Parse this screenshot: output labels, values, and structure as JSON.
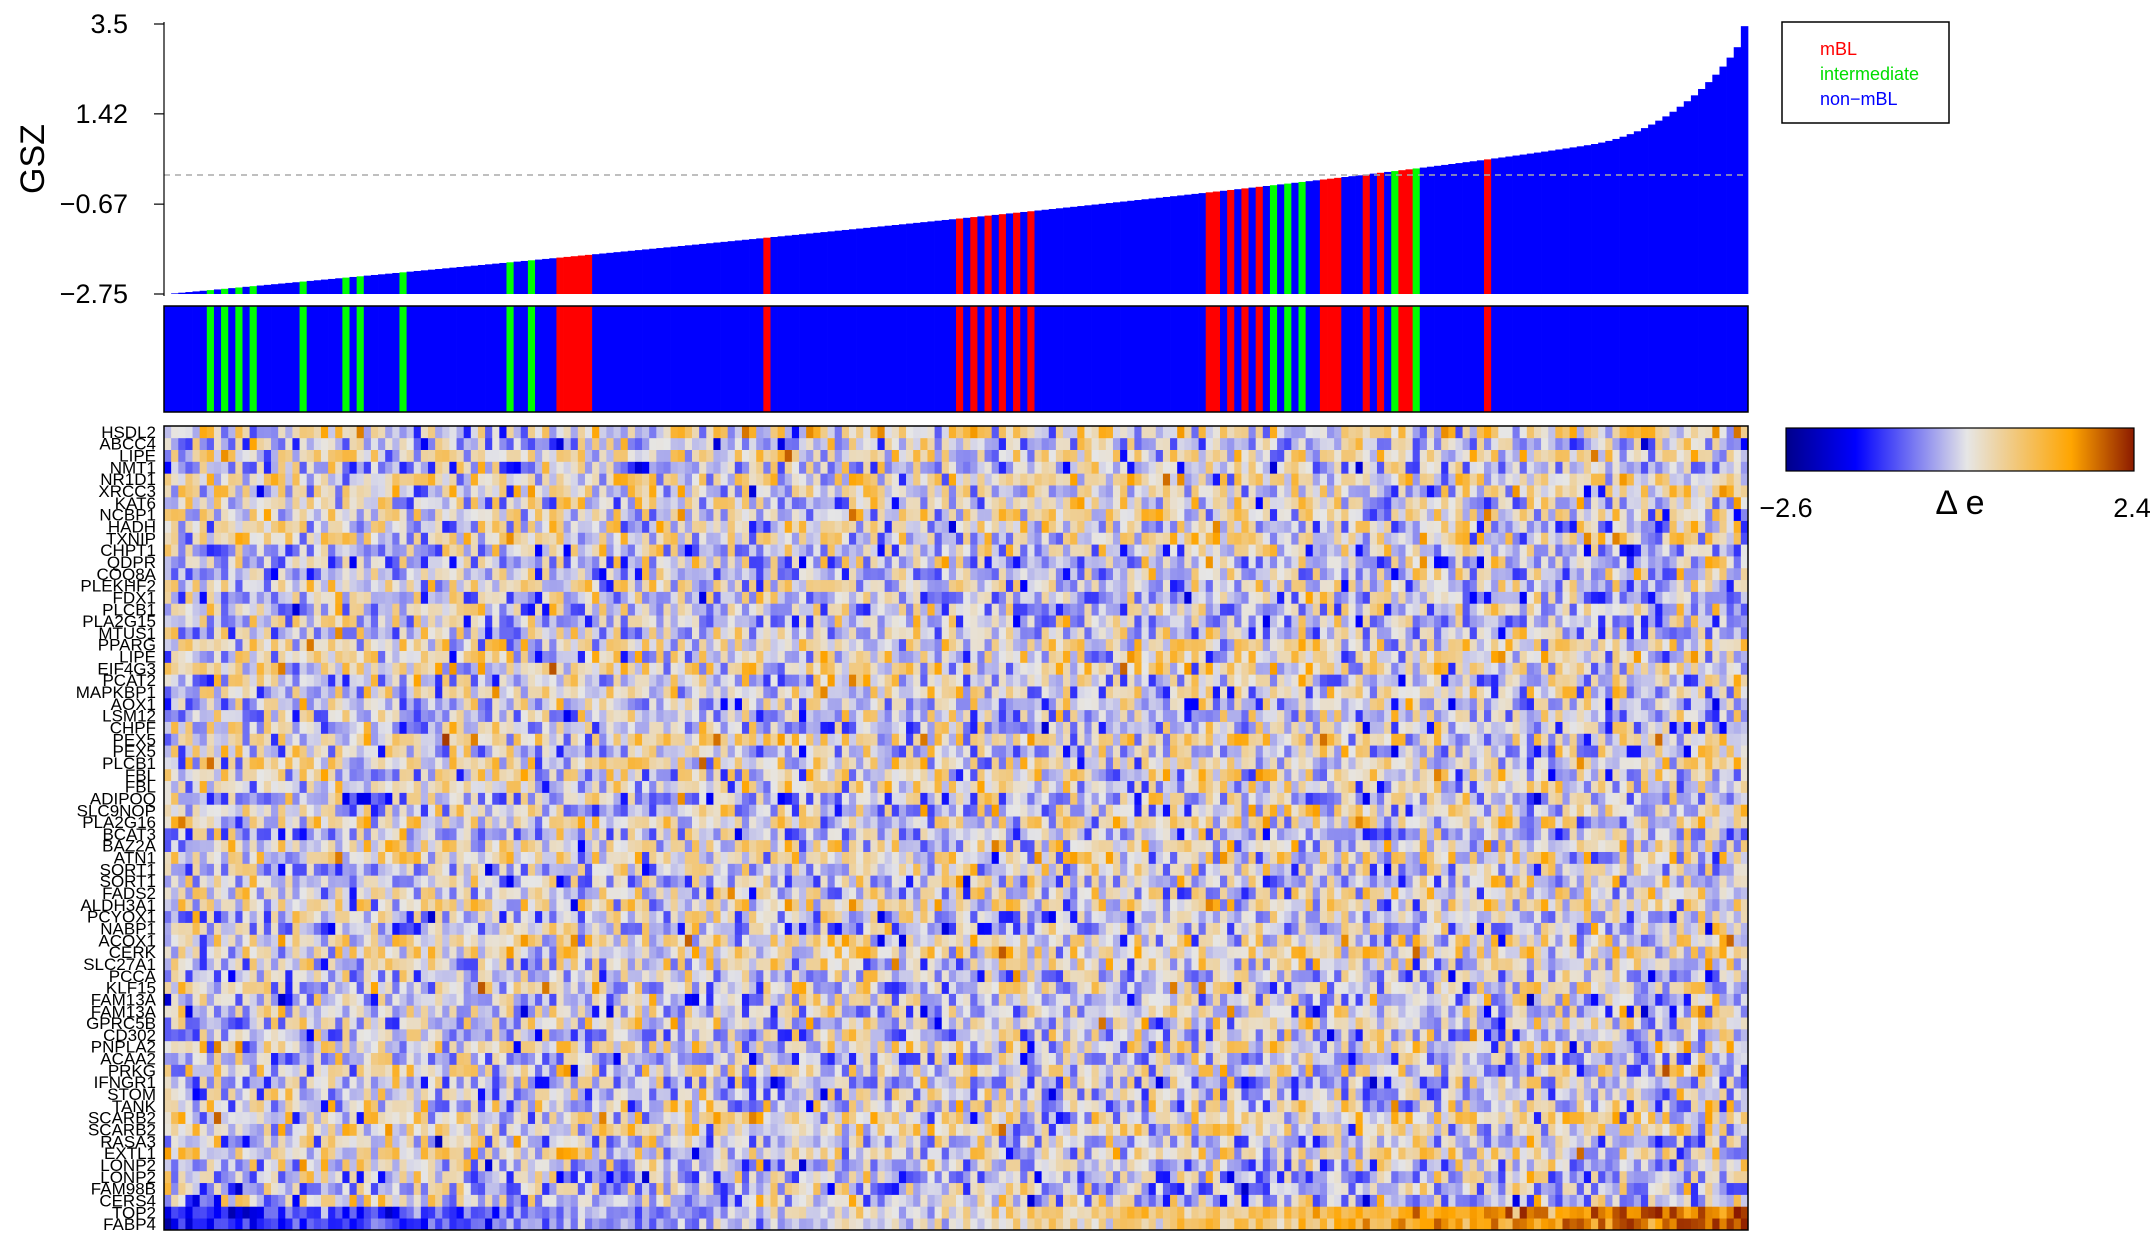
{
  "chart_data": [
    {
      "type": "bar",
      "description": "Gene set Z score (GSZ) per sample, sorted ascending, colored by class",
      "ylabel": "GSZ",
      "yticks": [
        "3.5",
        "1.42",
        "−0.67",
        "−2.75"
      ],
      "ylim": [
        -2.75,
        3.5
      ],
      "reference_line": 0.0,
      "n_samples": 220,
      "class_sequence": "nnnnnnininininnnnnninnnnnininnnnninnnnnnnnnnnnnninninnnrrrrrnnnnnnnnnnnnnnnnnnnnnnnnrnnnnnnnnnnnnnnnnnnnnnnnnnnrnrnrnrnrnrnnnnnnnnnnnnnnnnnnnnnnnnrrnrnrnrninininnrrrnnnrnrnirrinnnnnnnnnrnnnnnnnnnnnnnnnnnnnnnnnnnnnnnnnnnnnn",
      "legend": [
        {
          "label": "mBL",
          "color": "#ff0000"
        },
        {
          "label": "intermediate",
          "color": "#00ff00"
        },
        {
          "label": "non−mBL",
          "color": "#0000ff"
        }
      ]
    },
    {
      "type": "heatmap",
      "description": "Per-gene expression difference for each sample",
      "colorbar_min": "−2.6",
      "colorbar_max": "2.4",
      "colorbar_label": "Δ e",
      "colorscale": [
        "#00008b",
        "#0000ff",
        "#e6e6e6",
        "#ffa500",
        "#8b1a00"
      ],
      "genes": [
        "HSDL2",
        "ABCC4",
        "LIPE",
        "NMT1",
        "NR1D1",
        "XRCC3",
        "KAT6",
        "NCBP1",
        "HADH",
        "TXNIP",
        "CHPT1",
        "QDPR",
        "COQ8A",
        "PLEKHF2",
        "FDX1",
        "PLCB1",
        "PLA2G15",
        "MTUS1",
        "PPARG",
        "LIPE",
        "EIF4G3",
        "PCAT2",
        "MAPKBP1",
        "AOX1",
        "LSM12",
        "CHPF",
        "PEX5",
        "PEX5",
        "PLCB1",
        "FBL",
        "FBL",
        "ADIPOQ",
        "SLC9NOP",
        "PLA2G16",
        "BCAT3",
        "BAZ2A",
        "ATN1",
        "SORT1",
        "SORT1",
        "FADS2",
        "ALDH3A1",
        "PCYOX1",
        "NABP1",
        "ACOX1",
        "CERK",
        "SLC27A1",
        "PCCA",
        "KLF15",
        "FAM13A",
        "FAM13A",
        "GPRC5B",
        "CD302",
        "PNPLA2",
        "ACAA2",
        "PRKG",
        "IFNGR1",
        "STOM",
        "TANK",
        "SCARB2",
        "SCARB2",
        "RASA3",
        "EXTL1",
        "LONP2",
        "LONP2",
        "FAM98B",
        "CERS4",
        "TOP2",
        "FABP4"
      ]
    }
  ]
}
